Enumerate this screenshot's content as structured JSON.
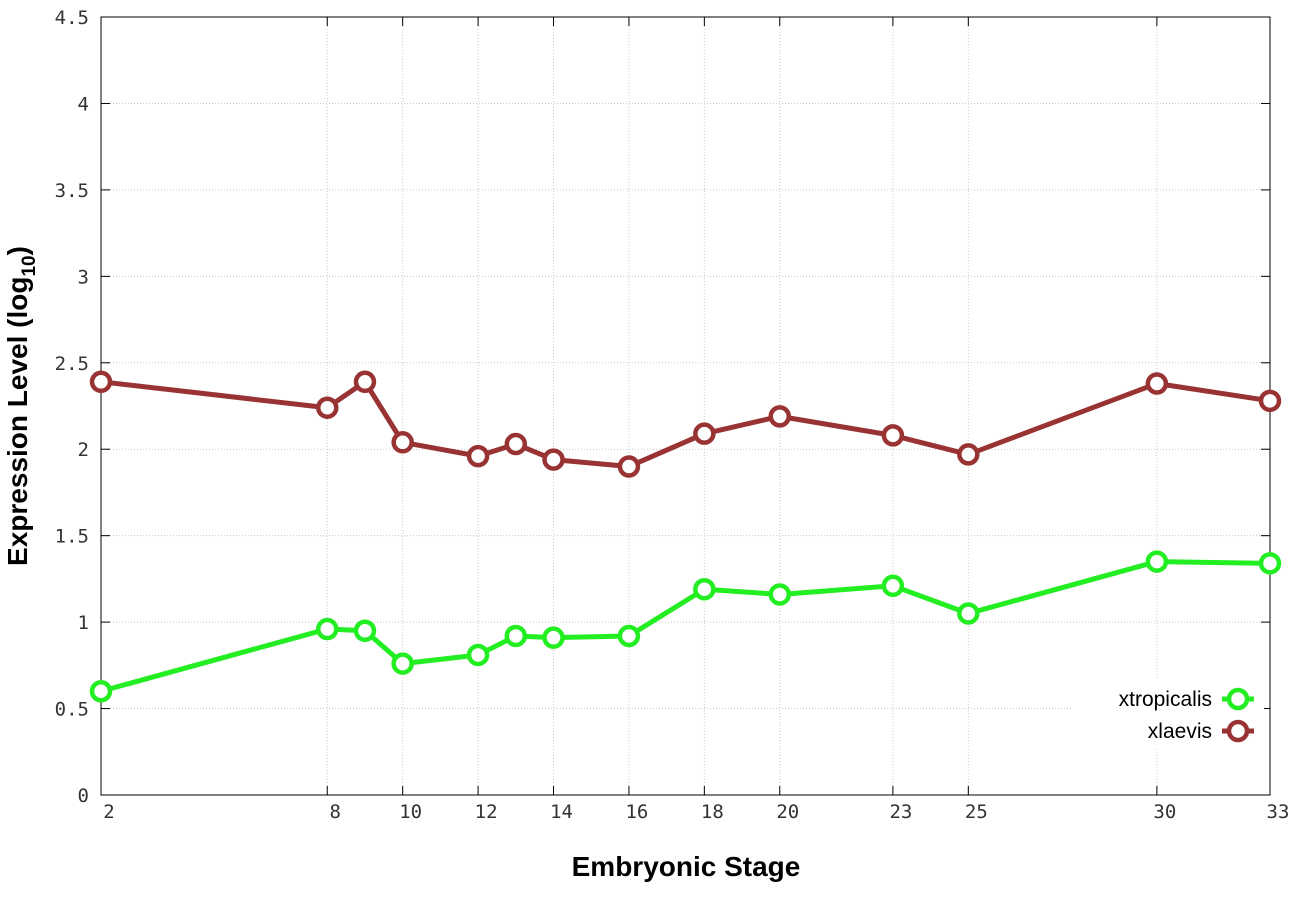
{
  "chart_data": {
    "type": "line",
    "title": "",
    "xlabel": "Embryonic Stage",
    "ylabel": "Expression Level (log",
    "ylabel_sub": "10",
    "ylabel_close": ")",
    "x": [
      2,
      8,
      9,
      10,
      12,
      13,
      14,
      16,
      18,
      20,
      23,
      25,
      30,
      33
    ],
    "xticks": [
      "2",
      "8",
      "10",
      "12",
      "14",
      "16",
      "18",
      "20",
      "23",
      "25",
      "30",
      "33"
    ],
    "xtick_values": [
      2,
      8,
      10,
      12,
      14,
      16,
      18,
      20,
      23,
      25,
      30,
      33
    ],
    "yticks": [
      "0",
      "0.5",
      "1",
      "1.5",
      "2",
      "2.5",
      "3",
      "3.5",
      "4",
      "4.5"
    ],
    "ytick_values": [
      0,
      0.5,
      1,
      1.5,
      2,
      2.5,
      3,
      3.5,
      4,
      4.5
    ],
    "xlim": [
      2,
      33
    ],
    "ylim": [
      0,
      4.5
    ],
    "grid": true,
    "legend_position": "bottom-right",
    "series": [
      {
        "name": "xtropicalis",
        "color": "#22ee22",
        "values": [
          0.6,
          0.96,
          0.95,
          0.76,
          0.81,
          0.92,
          0.91,
          0.92,
          1.19,
          1.16,
          1.21,
          1.05,
          1.35,
          1.34
        ]
      },
      {
        "name": "xlaevis",
        "color": "#993333",
        "values": [
          2.39,
          2.24,
          2.39,
          2.04,
          1.96,
          2.03,
          1.94,
          1.9,
          2.09,
          2.19,
          2.08,
          1.97,
          2.38,
          2.28
        ]
      }
    ]
  }
}
